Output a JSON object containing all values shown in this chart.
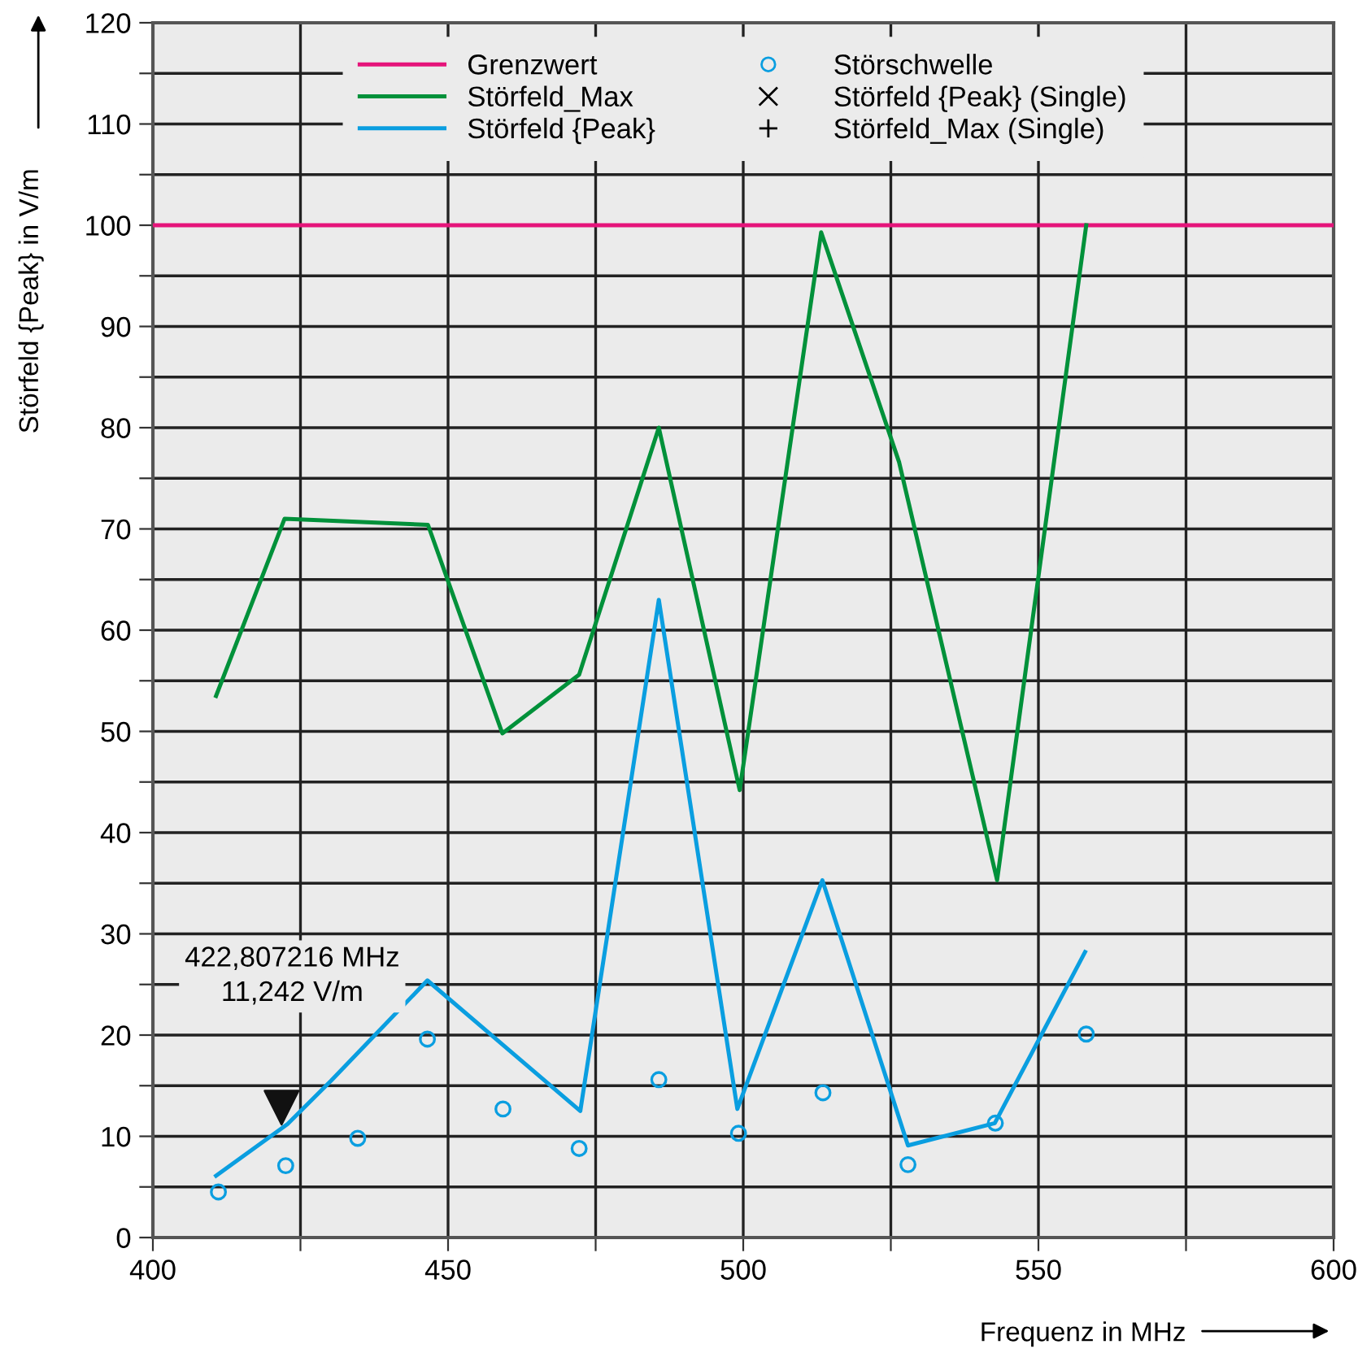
{
  "chart_data": {
    "type": "line",
    "xlabel": "Frequenz in MHz",
    "ylabel": "Störfeld {Peak} in V/m",
    "xlim": [
      400,
      600
    ],
    "ylim": [
      0,
      120
    ],
    "xticks": [
      400,
      {
        "value": 425,
        "label": null
      },
      450,
      {
        "value": 475,
        "label": null
      },
      500,
      {
        "value": 525,
        "label": null
      },
      550,
      {
        "value": 575,
        "label": null
      },
      600
    ],
    "yticks": [
      0,
      {
        "value": 5,
        "label": null
      },
      10,
      {
        "value": 15,
        "label": null
      },
      20,
      {
        "value": 25,
        "label": null
      },
      30,
      {
        "value": 35,
        "label": null
      },
      40,
      {
        "value": 45,
        "label": null
      },
      50,
      {
        "value": 55,
        "label": null
      },
      60,
      {
        "value": 65,
        "label": null
      },
      70,
      {
        "value": 75,
        "label": null
      },
      80,
      {
        "value": 85,
        "label": null
      },
      90,
      {
        "value": 95,
        "label": null
      },
      100,
      {
        "value": 105,
        "label": null
      },
      110,
      {
        "value": 115,
        "label": null
      },
      120
    ],
    "grid": true,
    "legend": "top",
    "series": [
      {
        "name": "Grenzwert",
        "color": "#e5147a",
        "x": [
          400,
          600
        ],
        "values": [
          100,
          100
        ]
      },
      {
        "name": "Störfeld_Max",
        "color": "#00913a",
        "x": [
          410.7,
          422.3,
          446.6,
          459.2,
          472.2,
          485.7,
          499.4,
          513.2,
          526.4,
          543.0,
          558.1
        ],
        "values": [
          53.5,
          71.0,
          70.4,
          49.8,
          55.6,
          80.0,
          44.2,
          99.3,
          76.6,
          35.3,
          100
        ]
      },
      {
        "name": "Störfeld {Peak}",
        "color": "#0a9ee0",
        "x": [
          410.7,
          422.8,
          430.2,
          446.5,
          472.4,
          485.7,
          499.0,
          513.4,
          527.9,
          542.6,
          557.9
        ],
        "values": [
          6.1,
          11.2,
          15.5,
          25.4,
          12.5,
          63.0,
          12.7,
          35.3,
          9.1,
          11.3,
          28.2
        ]
      },
      {
        "name": "Störschwelle",
        "type": "scatter",
        "marker": "circle",
        "color": "#0a9ee0",
        "x": [
          411.1,
          422.5,
          434.7,
          446.5,
          459.3,
          472.2,
          485.7,
          499.2,
          513.5,
          527.9,
          542.7,
          558.1
        ],
        "values": [
          4.5,
          7.1,
          9.8,
          19.6,
          12.7,
          8.8,
          15.6,
          10.3,
          14.3,
          7.2,
          11.3,
          20.1
        ]
      },
      {
        "name": "Störfeld {Peak} (Single)",
        "type": "scatter",
        "marker": "cross",
        "color": "#000000"
      },
      {
        "name": "Störfeld_Max (Single)",
        "type": "scatter",
        "marker": "plus",
        "color": "#000000"
      }
    ],
    "annotations": [
      "422,807216 MHz\n11,242 V/m"
    ]
  }
}
